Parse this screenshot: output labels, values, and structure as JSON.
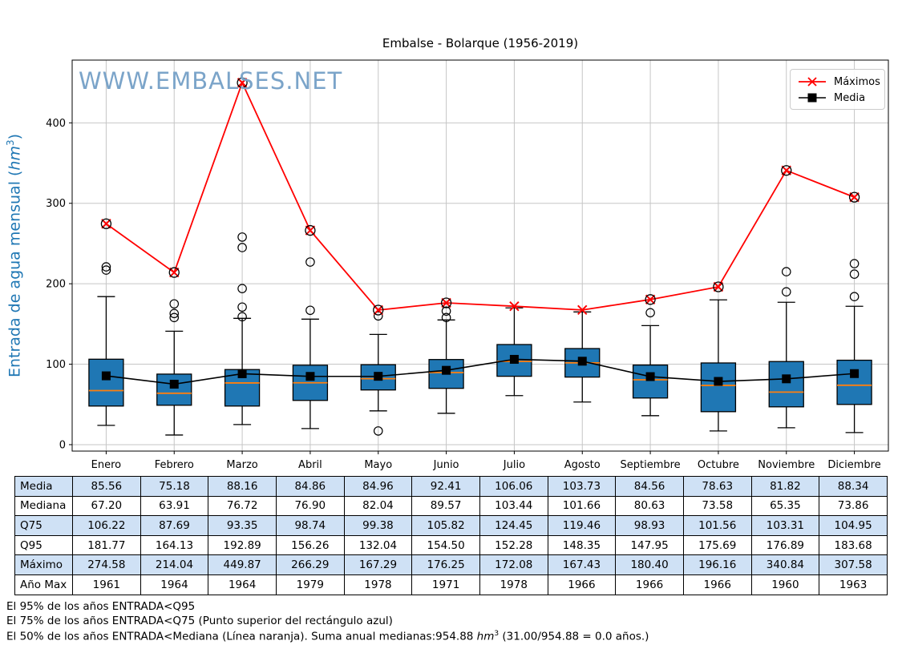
{
  "title": "Embalse - Bolarque (1956-2019)",
  "watermark": "WWW.EMBALSES.NET",
  "y_axis": {
    "prefix": "Entrada de agua mensual (",
    "unit": "hm",
    "exp": "3",
    "suffix": ")"
  },
  "legend": {
    "maximos": "Máximos",
    "media": "Media"
  },
  "chart_data": {
    "type": "boxplot+line",
    "title": "Embalse - Bolarque (1956-2019)",
    "ylabel": "Entrada de agua mensual (hm3)",
    "categories": [
      "Enero",
      "Febrero",
      "Marzo",
      "Abril",
      "Mayo",
      "Junio",
      "Julio",
      "Agosto",
      "Septiembre",
      "Octubre",
      "Noviembre",
      "Diciembre"
    ],
    "y_ticks": [
      0,
      100,
      200,
      300,
      400
    ],
    "ylim": [
      -8,
      478
    ],
    "grid": true,
    "legend_position": "upper right",
    "series": [
      {
        "name": "Máximos",
        "marker": "x",
        "color": "#ff0000",
        "values": [
          274.58,
          214.04,
          449.87,
          266.29,
          167.29,
          176.25,
          172.08,
          167.43,
          180.4,
          196.16,
          340.84,
          307.58
        ]
      },
      {
        "name": "Media",
        "marker": "square",
        "color": "#000000",
        "values": [
          85.56,
          75.18,
          88.16,
          84.86,
          84.96,
          92.41,
          106.06,
          103.73,
          84.56,
          78.63,
          81.82,
          88.34
        ]
      }
    ],
    "boxes": [
      {
        "whislo": 24,
        "q1": 48,
        "med": 67.2,
        "q3": 106.22,
        "whishi": 184,
        "outliers": [
          217,
          221
        ],
        "max_circled": true
      },
      {
        "whislo": 12,
        "q1": 49,
        "med": 63.91,
        "q3": 87.69,
        "whishi": 141,
        "outliers": [
          158,
          163,
          175
        ],
        "max_circled": true
      },
      {
        "whislo": 25,
        "q1": 48,
        "med": 76.72,
        "q3": 93.35,
        "whishi": 157,
        "outliers": [
          159,
          171,
          194,
          245,
          258
        ],
        "max_circled": true
      },
      {
        "whislo": 20,
        "q1": 55,
        "med": 76.9,
        "q3": 98.74,
        "whishi": 156,
        "outliers": [
          167,
          227
        ],
        "max_circled": true
      },
      {
        "whislo": 42,
        "q1": 68,
        "med": 82.04,
        "q3": 99.38,
        "whishi": 137,
        "outliers": [
          17,
          160
        ],
        "max_circled": true
      },
      {
        "whislo": 39,
        "q1": 70,
        "med": 89.57,
        "q3": 105.82,
        "whishi": 155,
        "outliers": [
          158,
          166
        ],
        "max_circled": true
      },
      {
        "whislo": 61,
        "q1": 85,
        "med": 103.44,
        "q3": 124.45,
        "whishi": 170,
        "outliers": [],
        "max_circled": false
      },
      {
        "whislo": 53,
        "q1": 84,
        "med": 101.66,
        "q3": 119.46,
        "whishi": 165,
        "outliers": [],
        "max_circled": false
      },
      {
        "whislo": 36,
        "q1": 58,
        "med": 80.63,
        "q3": 98.93,
        "whishi": 148,
        "outliers": [
          164
        ],
        "max_circled": true
      },
      {
        "whislo": 17,
        "q1": 41,
        "med": 73.58,
        "q3": 101.56,
        "whishi": 180,
        "outliers": [],
        "max_circled": true
      },
      {
        "whislo": 21,
        "q1": 47,
        "med": 65.35,
        "q3": 103.31,
        "whishi": 177,
        "outliers": [
          190,
          215
        ],
        "max_circled": true
      },
      {
        "whislo": 15,
        "q1": 50,
        "med": 73.86,
        "q3": 104.95,
        "whishi": 172,
        "outliers": [
          184,
          212,
          225
        ],
        "max_circled": true
      }
    ],
    "colors": {
      "box_fill": "#1f77b4",
      "box_edge": "#000000",
      "median": "#ff7f0e",
      "grid": "#c6c6c6",
      "max_line": "#ff0000",
      "mean_line": "#000000",
      "axis": "#000000",
      "watermark": "#7ba4c9",
      "ylabel": "#1f77b4"
    }
  },
  "table": {
    "rows": [
      {
        "label": "Media",
        "shaded": true,
        "values": [
          "85.56",
          "75.18",
          "88.16",
          "84.86",
          "84.96",
          "92.41",
          "106.06",
          "103.73",
          "84.56",
          "78.63",
          "81.82",
          "88.34"
        ]
      },
      {
        "label": "Mediana",
        "shaded": false,
        "values": [
          "67.20",
          "63.91",
          "76.72",
          "76.90",
          "82.04",
          "89.57",
          "103.44",
          "101.66",
          "80.63",
          "73.58",
          "65.35",
          "73.86"
        ]
      },
      {
        "label": "Q75",
        "shaded": true,
        "values": [
          "106.22",
          "87.69",
          "93.35",
          "98.74",
          "99.38",
          "105.82",
          "124.45",
          "119.46",
          "98.93",
          "101.56",
          "103.31",
          "104.95"
        ]
      },
      {
        "label": "Q95",
        "shaded": false,
        "values": [
          "181.77",
          "164.13",
          "192.89",
          "156.26",
          "132.04",
          "154.50",
          "152.28",
          "148.35",
          "147.95",
          "175.69",
          "176.89",
          "183.68"
        ]
      },
      {
        "label": "Máximo",
        "shaded": true,
        "values": [
          "274.58",
          "214.04",
          "449.87",
          "266.29",
          "167.29",
          "176.25",
          "172.08",
          "167.43",
          "180.40",
          "196.16",
          "340.84",
          "307.58"
        ]
      },
      {
        "label": "Año Max",
        "shaded": false,
        "values": [
          "1961",
          "1964",
          "1964",
          "1979",
          "1978",
          "1971",
          "1978",
          "1966",
          "1966",
          "1966",
          "1960",
          "1963"
        ]
      }
    ]
  },
  "footer": {
    "line1": "El 95% de los años ENTRADA<Q95",
    "line2": "El 75% de los años ENTRADA<Q75 (Punto superior del rectángulo azul)",
    "line3_prefix": "El 50% de los años ENTRADA<Mediana (Línea naranja). Suma anual medianas:954.88 ",
    "unit": "hm",
    "unit_exp": "3",
    "line3_suffix": " (31.00/954.88 = 0.0 años.)"
  }
}
